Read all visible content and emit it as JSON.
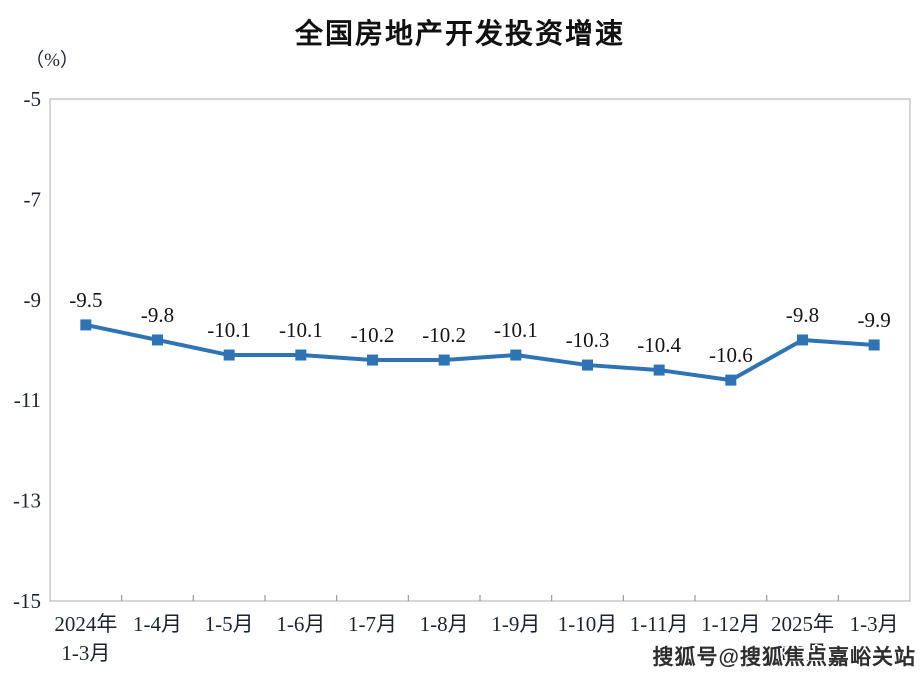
{
  "page": {
    "background_color": "#ffffff"
  },
  "watermark": {
    "text": "搜狐号@搜狐焦点嘉峪关站",
    "color": "#2e2e2e"
  },
  "chart_data": {
    "type": "line",
    "title": "全国房地产开发投资增速",
    "unit_label": "（%）",
    "xlabel": "",
    "ylabel": "（%）",
    "categories": [
      "2024年\n1-3月",
      "1-4月",
      "1-5月",
      "1-6月",
      "1-7月",
      "1-8月",
      "1-9月",
      "1-10月",
      "1-11月",
      "1-12月",
      "2025年\n1-2月",
      "1-3月"
    ],
    "values": [
      -9.5,
      -9.8,
      -10.1,
      -10.1,
      -10.2,
      -10.2,
      -10.1,
      -10.3,
      -10.4,
      -10.6,
      -9.8,
      -9.9
    ],
    "data_labels": [
      "-9.5",
      "-9.8",
      "-10.1",
      "-10.1",
      "-10.2",
      "-10.2",
      "-10.1",
      "-10.3",
      "-10.4",
      "-10.6",
      "-9.8",
      "-9.9"
    ],
    "y_ticks": [
      "-5",
      "-7",
      "-9",
      "-11",
      "-13",
      "-15"
    ],
    "ylim": [
      -15,
      -5
    ],
    "y_tick_step": 2,
    "grid": false,
    "legend_position": "none",
    "line_color": "#2E74B5",
    "marker": "square",
    "axis_text_color": "#1c2330",
    "data_label_color": "#141414",
    "plot_border_color": "#c9c9c9",
    "tick_color": "#9a9a9a"
  }
}
